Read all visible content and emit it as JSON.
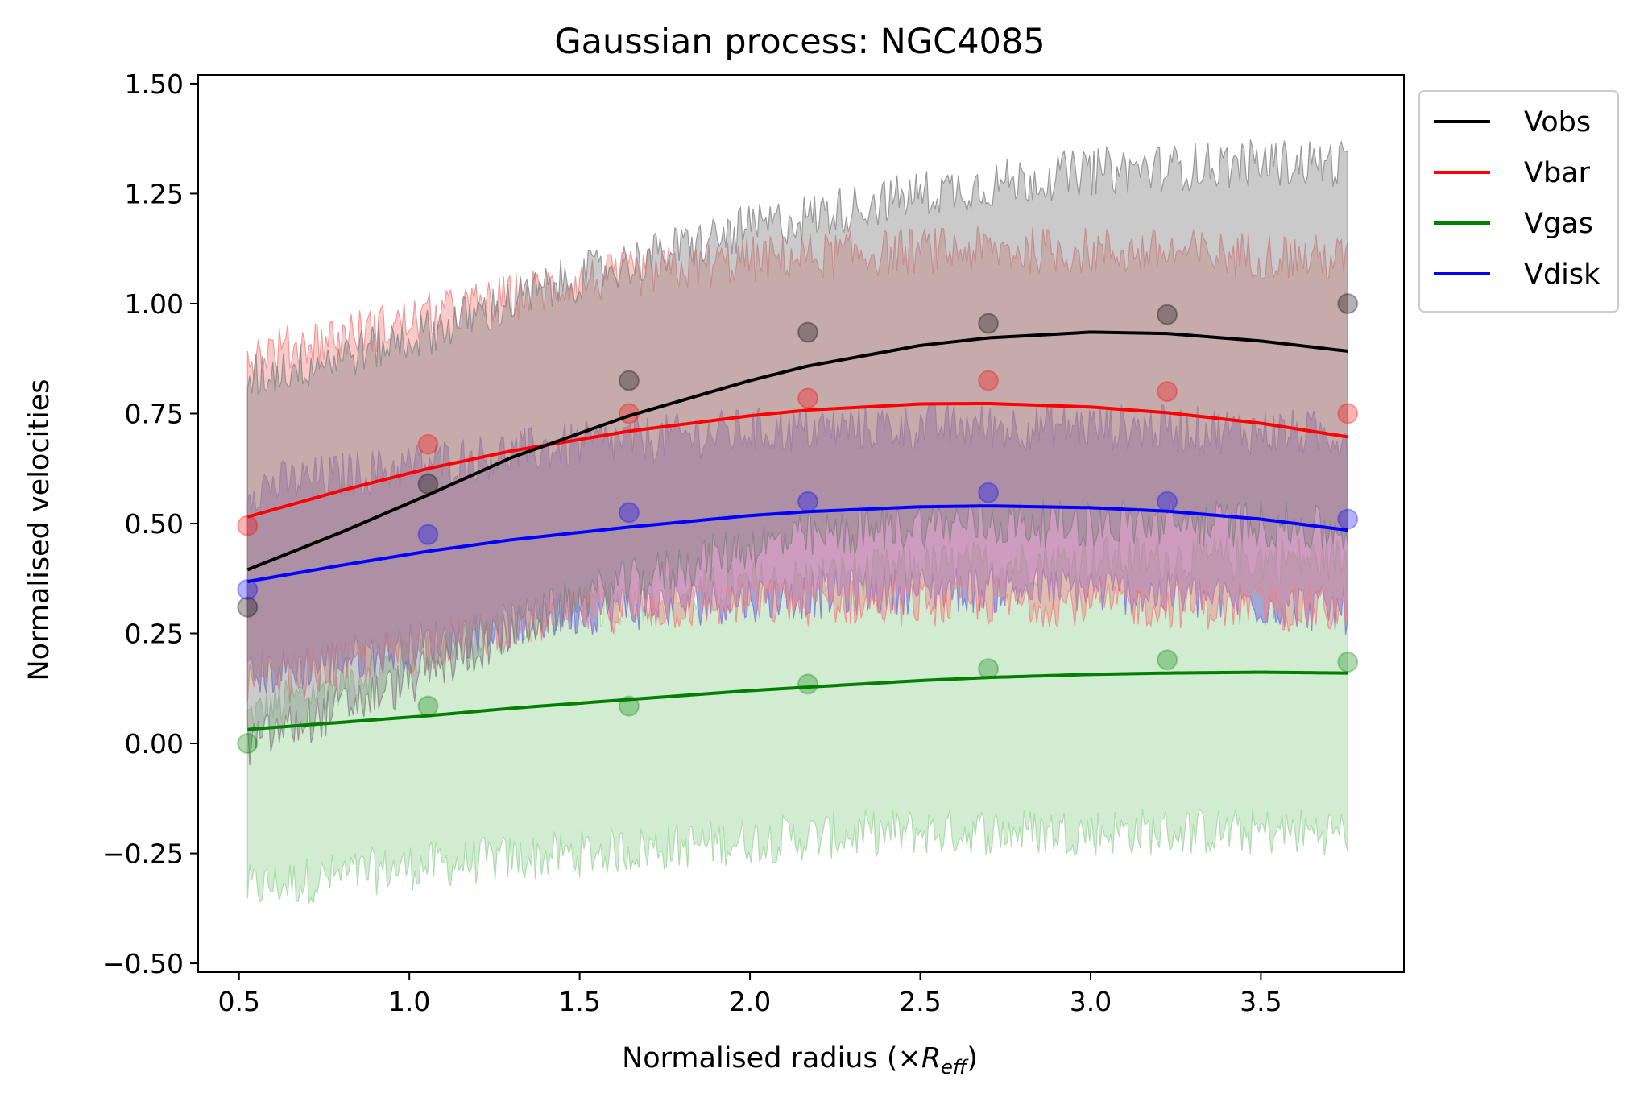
{
  "chart_data": {
    "type": "line",
    "title": "Gaussian process: NGC4085",
    "xlabel_prefix": "Normalised radius (×",
    "xlabel_symbol": "R",
    "xlabel_subscript": "eff",
    "xlabel_suffix": ")",
    "ylabel": "Normalised velocities",
    "xlim": [
      0.38,
      3.92
    ],
    "ylim": [
      -0.52,
      1.52
    ],
    "x_ticks": [
      0.5,
      1.0,
      1.5,
      2.0,
      2.5,
      3.0,
      3.5
    ],
    "x_tick_labels": [
      "0.5",
      "1.0",
      "1.5",
      "2.0",
      "2.5",
      "3.0",
      "3.5"
    ],
    "y_ticks": [
      -0.5,
      -0.25,
      0.0,
      0.25,
      0.5,
      0.75,
      1.0,
      1.25,
      1.5
    ],
    "y_tick_labels": [
      "−0.50",
      "−0.25",
      "0.00",
      "0.25",
      "0.50",
      "0.75",
      "1.00",
      "1.25",
      "1.50"
    ],
    "legend_position": "outside-top-right",
    "data_x": [
      0.525,
      1.055,
      1.645,
      2.17,
      2.7,
      3.225,
      3.755
    ],
    "series": [
      {
        "name": "Vobs",
        "color": "#000000",
        "band_color": "#808080",
        "data_points": [
          0.31,
          0.59,
          0.825,
          0.935,
          0.955,
          0.975,
          1.0
        ],
        "gp_curve": {
          "x": [
            0.525,
            0.8,
            1.055,
            1.3,
            1.645,
            2.0,
            2.17,
            2.5,
            2.7,
            3.0,
            3.225,
            3.5,
            3.755
          ],
          "y": [
            0.395,
            0.48,
            0.565,
            0.65,
            0.745,
            0.825,
            0.858,
            0.905,
            0.922,
            0.935,
            0.932,
            0.915,
            0.892
          ]
        },
        "band_upper": {
          "x": [
            0.525,
            1.0,
            1.5,
            2.0,
            2.5,
            3.0,
            3.5,
            3.755
          ],
          "y": [
            0.83,
            0.92,
            1.06,
            1.17,
            1.25,
            1.3,
            1.32,
            1.32
          ]
        },
        "band_lower": {
          "x": [
            0.525,
            1.0,
            1.5,
            2.0,
            2.5,
            3.0,
            3.5,
            3.755
          ],
          "y": [
            0.0,
            0.14,
            0.33,
            0.45,
            0.5,
            0.5,
            0.5,
            0.48
          ]
        }
      },
      {
        "name": "Vbar",
        "color": "#ff0000",
        "band_color": "#f08080",
        "data_points": [
          0.495,
          0.68,
          0.75,
          0.785,
          0.825,
          0.8,
          0.75
        ],
        "gp_curve": {
          "x": [
            0.525,
            0.8,
            1.055,
            1.3,
            1.645,
            2.0,
            2.17,
            2.5,
            2.7,
            3.0,
            3.225,
            3.5,
            3.755
          ],
          "y": [
            0.515,
            0.575,
            0.625,
            0.665,
            0.71,
            0.745,
            0.758,
            0.772,
            0.773,
            0.765,
            0.752,
            0.728,
            0.697
          ]
        },
        "band_upper": {
          "x": [
            0.525,
            1.0,
            1.5,
            2.0,
            2.5,
            3.0,
            3.5,
            3.755
          ],
          "y": [
            0.88,
            0.96,
            1.05,
            1.1,
            1.12,
            1.12,
            1.11,
            1.1
          ]
        },
        "band_lower": {
          "x": [
            0.525,
            1.0,
            1.5,
            2.0,
            2.5,
            3.0,
            3.5,
            3.755
          ],
          "y": [
            0.13,
            0.21,
            0.3,
            0.32,
            0.32,
            0.32,
            0.31,
            0.3
          ]
        }
      },
      {
        "name": "Vgas",
        "color": "#008000",
        "band_color": "#9ad49a",
        "data_points": [
          0.0,
          0.085,
          0.085,
          0.135,
          0.17,
          0.19,
          0.185
        ],
        "gp_curve": {
          "x": [
            0.525,
            0.8,
            1.055,
            1.3,
            1.645,
            2.0,
            2.17,
            2.5,
            2.7,
            3.0,
            3.225,
            3.5,
            3.755
          ],
          "y": [
            0.032,
            0.048,
            0.063,
            0.08,
            0.1,
            0.12,
            0.128,
            0.143,
            0.15,
            0.157,
            0.16,
            0.162,
            0.16
          ]
        },
        "band_upper": {
          "x": [
            0.525,
            1.0,
            1.5,
            2.0,
            2.5,
            3.0,
            3.5,
            3.755
          ],
          "y": [
            0.06,
            0.2,
            0.31,
            0.36,
            0.4,
            0.42,
            0.42,
            0.42
          ]
        },
        "band_lower": {
          "x": [
            0.525,
            1.0,
            1.5,
            2.0,
            2.5,
            3.0,
            3.5,
            3.755
          ],
          "y": [
            -0.33,
            -0.28,
            -0.25,
            -0.22,
            -0.2,
            -0.2,
            -0.2,
            -0.2
          ]
        }
      },
      {
        "name": "Vdisk",
        "color": "#0000ff",
        "band_color": "#7a6fd8",
        "data_points": [
          0.35,
          0.475,
          0.525,
          0.55,
          0.57,
          0.55,
          0.51
        ],
        "gp_curve": {
          "x": [
            0.525,
            0.8,
            1.055,
            1.3,
            1.645,
            2.0,
            2.17,
            2.5,
            2.7,
            3.0,
            3.225,
            3.5,
            3.755
          ],
          "y": [
            0.368,
            0.405,
            0.437,
            0.463,
            0.492,
            0.518,
            0.527,
            0.538,
            0.54,
            0.536,
            0.528,
            0.51,
            0.485
          ]
        },
        "band_upper": {
          "x": [
            0.525,
            1.0,
            1.5,
            2.0,
            2.5,
            3.0,
            3.5,
            3.755
          ],
          "y": [
            0.58,
            0.63,
            0.68,
            0.71,
            0.72,
            0.72,
            0.71,
            0.7
          ]
        },
        "band_lower": {
          "x": [
            0.525,
            1.0,
            1.5,
            2.0,
            2.5,
            3.0,
            3.5,
            3.755
          ],
          "y": [
            0.15,
            0.22,
            0.3,
            0.33,
            0.35,
            0.35,
            0.32,
            0.3
          ]
        }
      }
    ]
  }
}
